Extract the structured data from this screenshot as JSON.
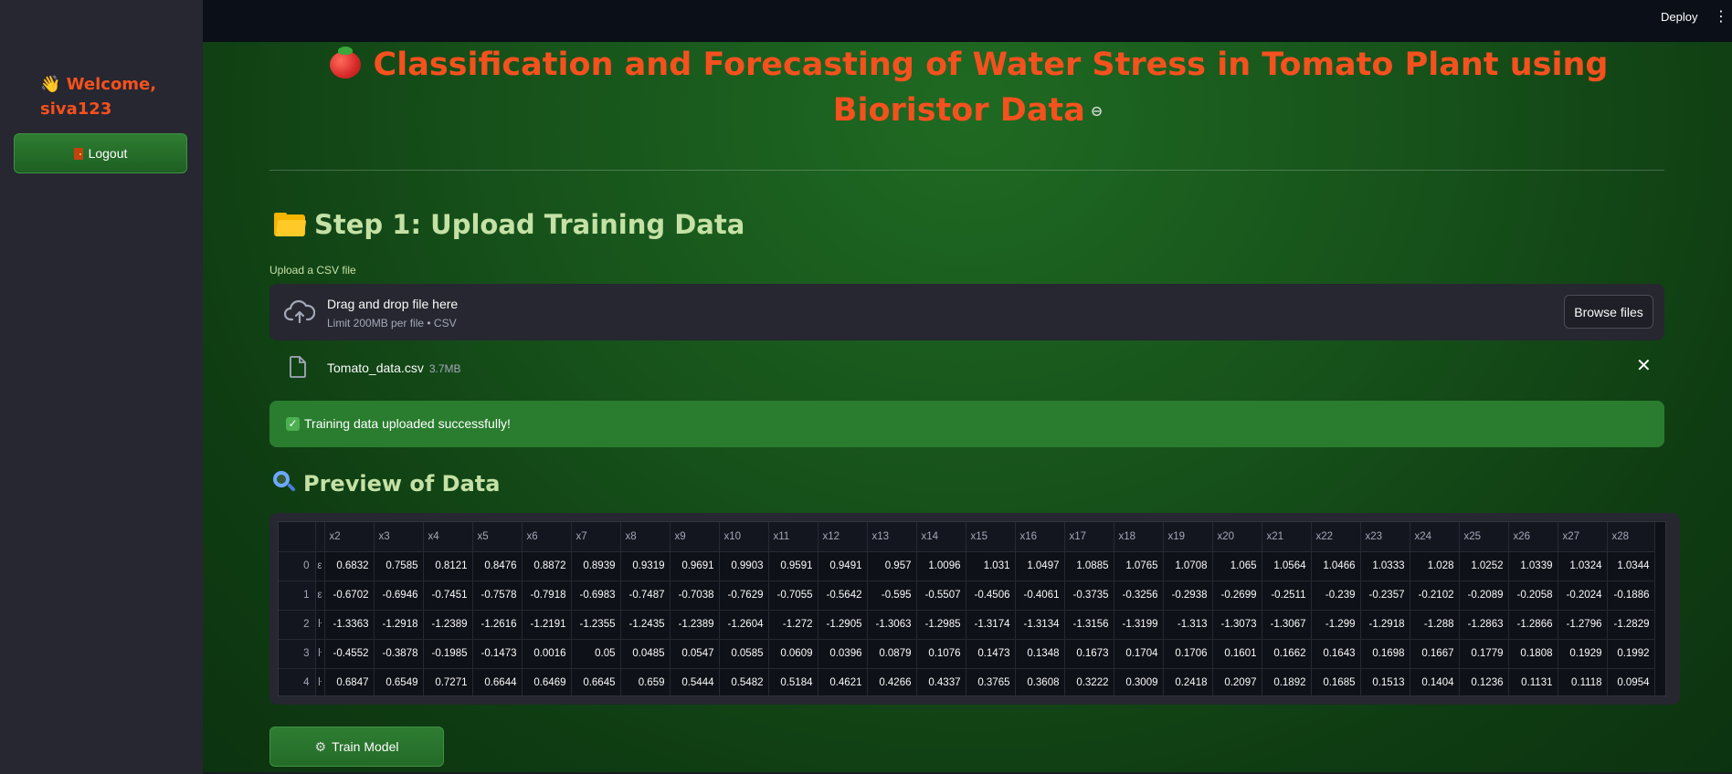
{
  "sidebar": {
    "welcome": "👋 Welcome, siva123",
    "logout_label": "Logout"
  },
  "topbar": {
    "deploy_label": "Deploy"
  },
  "main": {
    "title": "Classification and Forecasting of Water Stress in Tomato Plant using Bioristor Data",
    "step1_heading": "Step 1: Upload Training Data",
    "uploader": {
      "label": "Upload a CSV file",
      "drop_title": "Drag and drop file here",
      "drop_subtitle": "Limit 200MB per file • CSV",
      "browse_label": "Browse files"
    },
    "file": {
      "name": "Tomato_data.csv",
      "size": "3.7MB"
    },
    "success_message": "Training data uploaded successfully!",
    "preview_heading": "Preview of Data",
    "table": {
      "columns": [
        "x2",
        "x3",
        "x4",
        "x5",
        "x6",
        "x7",
        "x8",
        "x9",
        "x10",
        "x11",
        "x12",
        "x13",
        "x14",
        "x15",
        "x16",
        "x17",
        "x18",
        "x19",
        "x20",
        "x21",
        "x22",
        "x23",
        "x24",
        "x25",
        "x26",
        "x27",
        "x28"
      ],
      "cut_markers": [
        "ε",
        "ε",
        "ŀ",
        "ŀ",
        "ŀ"
      ],
      "rows": [
        {
          "index": "0",
          "values": [
            "0.6832",
            "0.7585",
            "0.8121",
            "0.8476",
            "0.8872",
            "0.8939",
            "0.9319",
            "0.9691",
            "0.9903",
            "0.9591",
            "0.9491",
            "0.957",
            "1.0096",
            "1.031",
            "1.0497",
            "1.0885",
            "1.0765",
            "1.0708",
            "1.065",
            "1.0564",
            "1.0466",
            "1.0333",
            "1.028",
            "1.0252",
            "1.0339",
            "1.0324",
            "1.0344"
          ]
        },
        {
          "index": "1",
          "values": [
            "-0.6702",
            "-0.6946",
            "-0.7451",
            "-0.7578",
            "-0.7918",
            "-0.6983",
            "-0.7487",
            "-0.7038",
            "-0.7629",
            "-0.7055",
            "-0.5642",
            "-0.595",
            "-0.5507",
            "-0.4506",
            "-0.4061",
            "-0.3735",
            "-0.3256",
            "-0.2938",
            "-0.2699",
            "-0.2511",
            "-0.239",
            "-0.2357",
            "-0.2102",
            "-0.2089",
            "-0.2058",
            "-0.2024",
            "-0.1886"
          ]
        },
        {
          "index": "2",
          "values": [
            "-1.3363",
            "-1.2918",
            "-1.2389",
            "-1.2616",
            "-1.2191",
            "-1.2355",
            "-1.2435",
            "-1.2389",
            "-1.2604",
            "-1.272",
            "-1.2905",
            "-1.3063",
            "-1.2985",
            "-1.3174",
            "-1.3134",
            "-1.3156",
            "-1.3199",
            "-1.313",
            "-1.3073",
            "-1.3067",
            "-1.299",
            "-1.2918",
            "-1.288",
            "-1.2863",
            "-1.2866",
            "-1.2796",
            "-1.2829"
          ]
        },
        {
          "index": "3",
          "values": [
            "-0.4552",
            "-0.3878",
            "-0.1985",
            "-0.1473",
            "0.0016",
            "0.05",
            "0.0485",
            "0.0547",
            "0.0585",
            "0.0609",
            "0.0396",
            "0.0879",
            "0.1076",
            "0.1473",
            "0.1348",
            "0.1673",
            "0.1704",
            "0.1706",
            "0.1601",
            "0.1662",
            "0.1643",
            "0.1698",
            "0.1667",
            "0.1779",
            "0.1808",
            "0.1929",
            "0.1992"
          ]
        },
        {
          "index": "4",
          "values": [
            "0.6847",
            "0.6549",
            "0.7271",
            "0.6644",
            "0.6469",
            "0.6645",
            "0.659",
            "0.5444",
            "0.5482",
            "0.5184",
            "0.4621",
            "0.4266",
            "0.4337",
            "0.3765",
            "0.3608",
            "0.3222",
            "0.3009",
            "0.2418",
            "0.2097",
            "0.1892",
            "0.1685",
            "0.1513",
            "0.1404",
            "0.1236",
            "0.1131",
            "0.1118",
            "0.0954"
          ]
        }
      ]
    },
    "train_label": "Train Model"
  },
  "icons": [
    "waving-hand-icon",
    "door-icon",
    "tomato-icon",
    "link-icon",
    "folder-icon",
    "cloud-upload-icon",
    "file-icon",
    "close-icon",
    "check-icon",
    "magnifier-icon",
    "gear-icon",
    "kebab-menu-icon"
  ],
  "colors": {
    "accent_title": "#f4511e",
    "heading_green": "#c5e1a5",
    "button_green": "#2e7d32",
    "sidebar_bg": "#262730"
  }
}
